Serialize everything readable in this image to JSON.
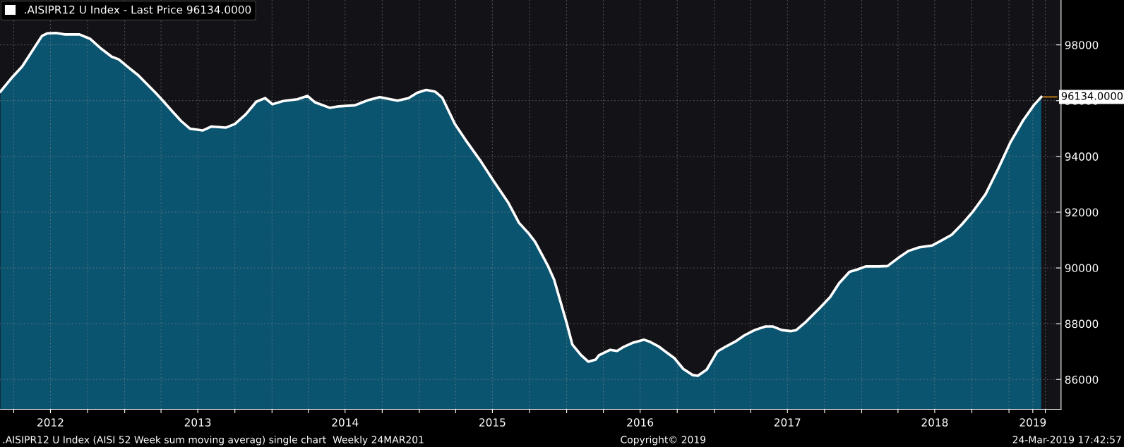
{
  "chart_data": {
    "type": "area",
    "x": [
      "2012-02-28",
      "2012-03-26",
      "2012-04-22",
      "2012-05-18",
      "2012-06-10",
      "2012-06-23",
      "2012-07-15",
      "2012-08-06",
      "2012-09-11",
      "2012-10-07",
      "2012-11-03",
      "2012-11-30",
      "2012-12-17",
      "2013-01-13",
      "2013-02-04",
      "2013-02-26",
      "2013-03-20",
      "2013-04-07",
      "2013-04-29",
      "2013-05-21",
      "2013-06-12",
      "2013-07-13",
      "2013-08-04",
      "2013-09-09",
      "2013-10-01",
      "2013-10-28",
      "2013-11-23",
      "2013-12-15",
      "2014-01-02",
      "2014-01-29",
      "2014-03-05",
      "2014-03-30",
      "2014-04-18",
      "2014-05-24",
      "2014-06-15",
      "2014-07-25",
      "2014-08-29",
      "2014-09-25",
      "2014-11-08",
      "2014-12-05",
      "2014-12-27",
      "2015-01-18",
      "2015-02-09",
      "2015-02-27",
      "2015-03-30",
      "2015-04-26",
      "2015-05-31",
      "2015-07-05",
      "2015-08-10",
      "2015-09-05",
      "2015-09-28",
      "2015-10-15",
      "2015-11-15",
      "2015-12-01",
      "2016-01-01",
      "2016-01-15",
      "2016-02-06",
      "2016-02-24",
      "2016-03-13",
      "2016-03-21",
      "2016-04-18",
      "2016-05-05",
      "2016-05-19",
      "2016-06-14",
      "2016-07-11",
      "2016-07-24",
      "2016-08-15",
      "2016-09-02",
      "2016-09-24",
      "2016-10-16",
      "2016-11-08",
      "2016-11-21",
      "2016-12-13",
      "2017-01-08",
      "2017-01-31",
      "2017-02-22",
      "2017-03-16",
      "2017-04-11",
      "2017-05-08",
      "2017-05-26",
      "2017-06-17",
      "2017-07-09",
      "2017-07-23",
      "2017-08-13",
      "2017-09-18",
      "2017-10-15",
      "2017-11-06",
      "2017-12-02",
      "2017-12-20",
      "2018-01-11",
      "2018-02-11",
      "2018-03-06",
      "2018-04-01",
      "2018-04-27",
      "2018-05-24",
      "2018-06-24",
      "2018-07-16",
      "2018-08-12",
      "2018-09-07",
      "2018-10-04",
      "2018-11-04",
      "2018-12-05",
      "2019-01-05",
      "2019-02-05",
      "2019-03-04",
      "2019-03-22"
    ],
    "series": [
      {
        "name": ".AISIPR12 U Index - Last Price 96134.0000",
        "color": "#ffffff",
        "values": [
          96324,
          96802,
          97226,
          97808,
          98324,
          98415,
          98427,
          98374,
          98374,
          98220,
          97871,
          97575,
          97484,
          97163,
          96905,
          96582,
          96258,
          95975,
          95614,
          95267,
          94994,
          94931,
          95073,
          95035,
          95164,
          95512,
          95962,
          96091,
          95871,
          95988,
          96053,
          96170,
          95937,
          95743,
          95796,
          95834,
          96028,
          96129,
          96000,
          96091,
          96286,
          96387,
          96324,
          96104,
          95164,
          94582,
          93874,
          93098,
          92325,
          91617,
          91255,
          90932,
          90095,
          89579,
          88030,
          87256,
          86869,
          86637,
          86715,
          86869,
          87064,
          87023,
          87152,
          87322,
          87426,
          87360,
          87193,
          86998,
          86765,
          86379,
          86161,
          86133,
          86353,
          86998,
          87193,
          87360,
          87580,
          87772,
          87901,
          87901,
          87772,
          87734,
          87772,
          88030,
          88545,
          88960,
          89450,
          89862,
          89938,
          90054,
          90054,
          90067,
          90353,
          90611,
          90740,
          90803,
          90972,
          91190,
          91576,
          92029,
          92648,
          93551,
          94519,
          95293,
          95846,
          96134
        ]
      }
    ],
    "xlim": [
      "2012-02-27",
      "2019-05-10"
    ],
    "xticks": [
      {
        "value": "2012-04-01",
        "label": null
      },
      {
        "value": "2012-07-01",
        "label": "2012"
      },
      {
        "value": "2012-10-01",
        "label": null
      },
      {
        "value": "2013-01-01",
        "label": null
      },
      {
        "value": "2013-04-01",
        "label": null
      },
      {
        "value": "2013-07-01",
        "label": "2013"
      },
      {
        "value": "2013-10-01",
        "label": null
      },
      {
        "value": "2014-01-01",
        "label": null
      },
      {
        "value": "2014-04-01",
        "label": null
      },
      {
        "value": "2014-07-01",
        "label": "2014"
      },
      {
        "value": "2014-10-01",
        "label": null
      },
      {
        "value": "2015-01-01",
        "label": null
      },
      {
        "value": "2015-04-01",
        "label": null
      },
      {
        "value": "2015-07-01",
        "label": "2015"
      },
      {
        "value": "2015-10-01",
        "label": null
      },
      {
        "value": "2016-01-01",
        "label": null
      },
      {
        "value": "2016-04-01",
        "label": null
      },
      {
        "value": "2016-07-01",
        "label": "2016"
      },
      {
        "value": "2016-10-01",
        "label": null
      },
      {
        "value": "2017-01-01",
        "label": null
      },
      {
        "value": "2017-04-01",
        "label": null
      },
      {
        "value": "2017-07-01",
        "label": "2017"
      },
      {
        "value": "2017-10-01",
        "label": null
      },
      {
        "value": "2018-01-01",
        "label": null
      },
      {
        "value": "2018-04-01",
        "label": null
      },
      {
        "value": "2018-07-01",
        "label": "2018"
      },
      {
        "value": "2018-10-01",
        "label": null
      },
      {
        "value": "2019-01-01",
        "label": null
      },
      {
        "value": "2019-03-01",
        "label": "2019"
      },
      {
        "value": "2019-04-01",
        "label": null
      }
    ],
    "ylim": [
      84930,
      99610
    ],
    "yticks": [
      86000,
      88000,
      90000,
      92000,
      94000,
      96000,
      98000
    ],
    "grid": true,
    "legend": "top left",
    "annotations": [
      {
        "text": "96134.0000",
        "x": "2019-03-22",
        "y": 96134
      },
      ".AISIPR12 U Index (AISI 52 Week sum moving averag) single chart  Weekly 24MAR201",
      "Copyright© 2019",
      "24-Mar-2019 17:42:57"
    ]
  }
}
